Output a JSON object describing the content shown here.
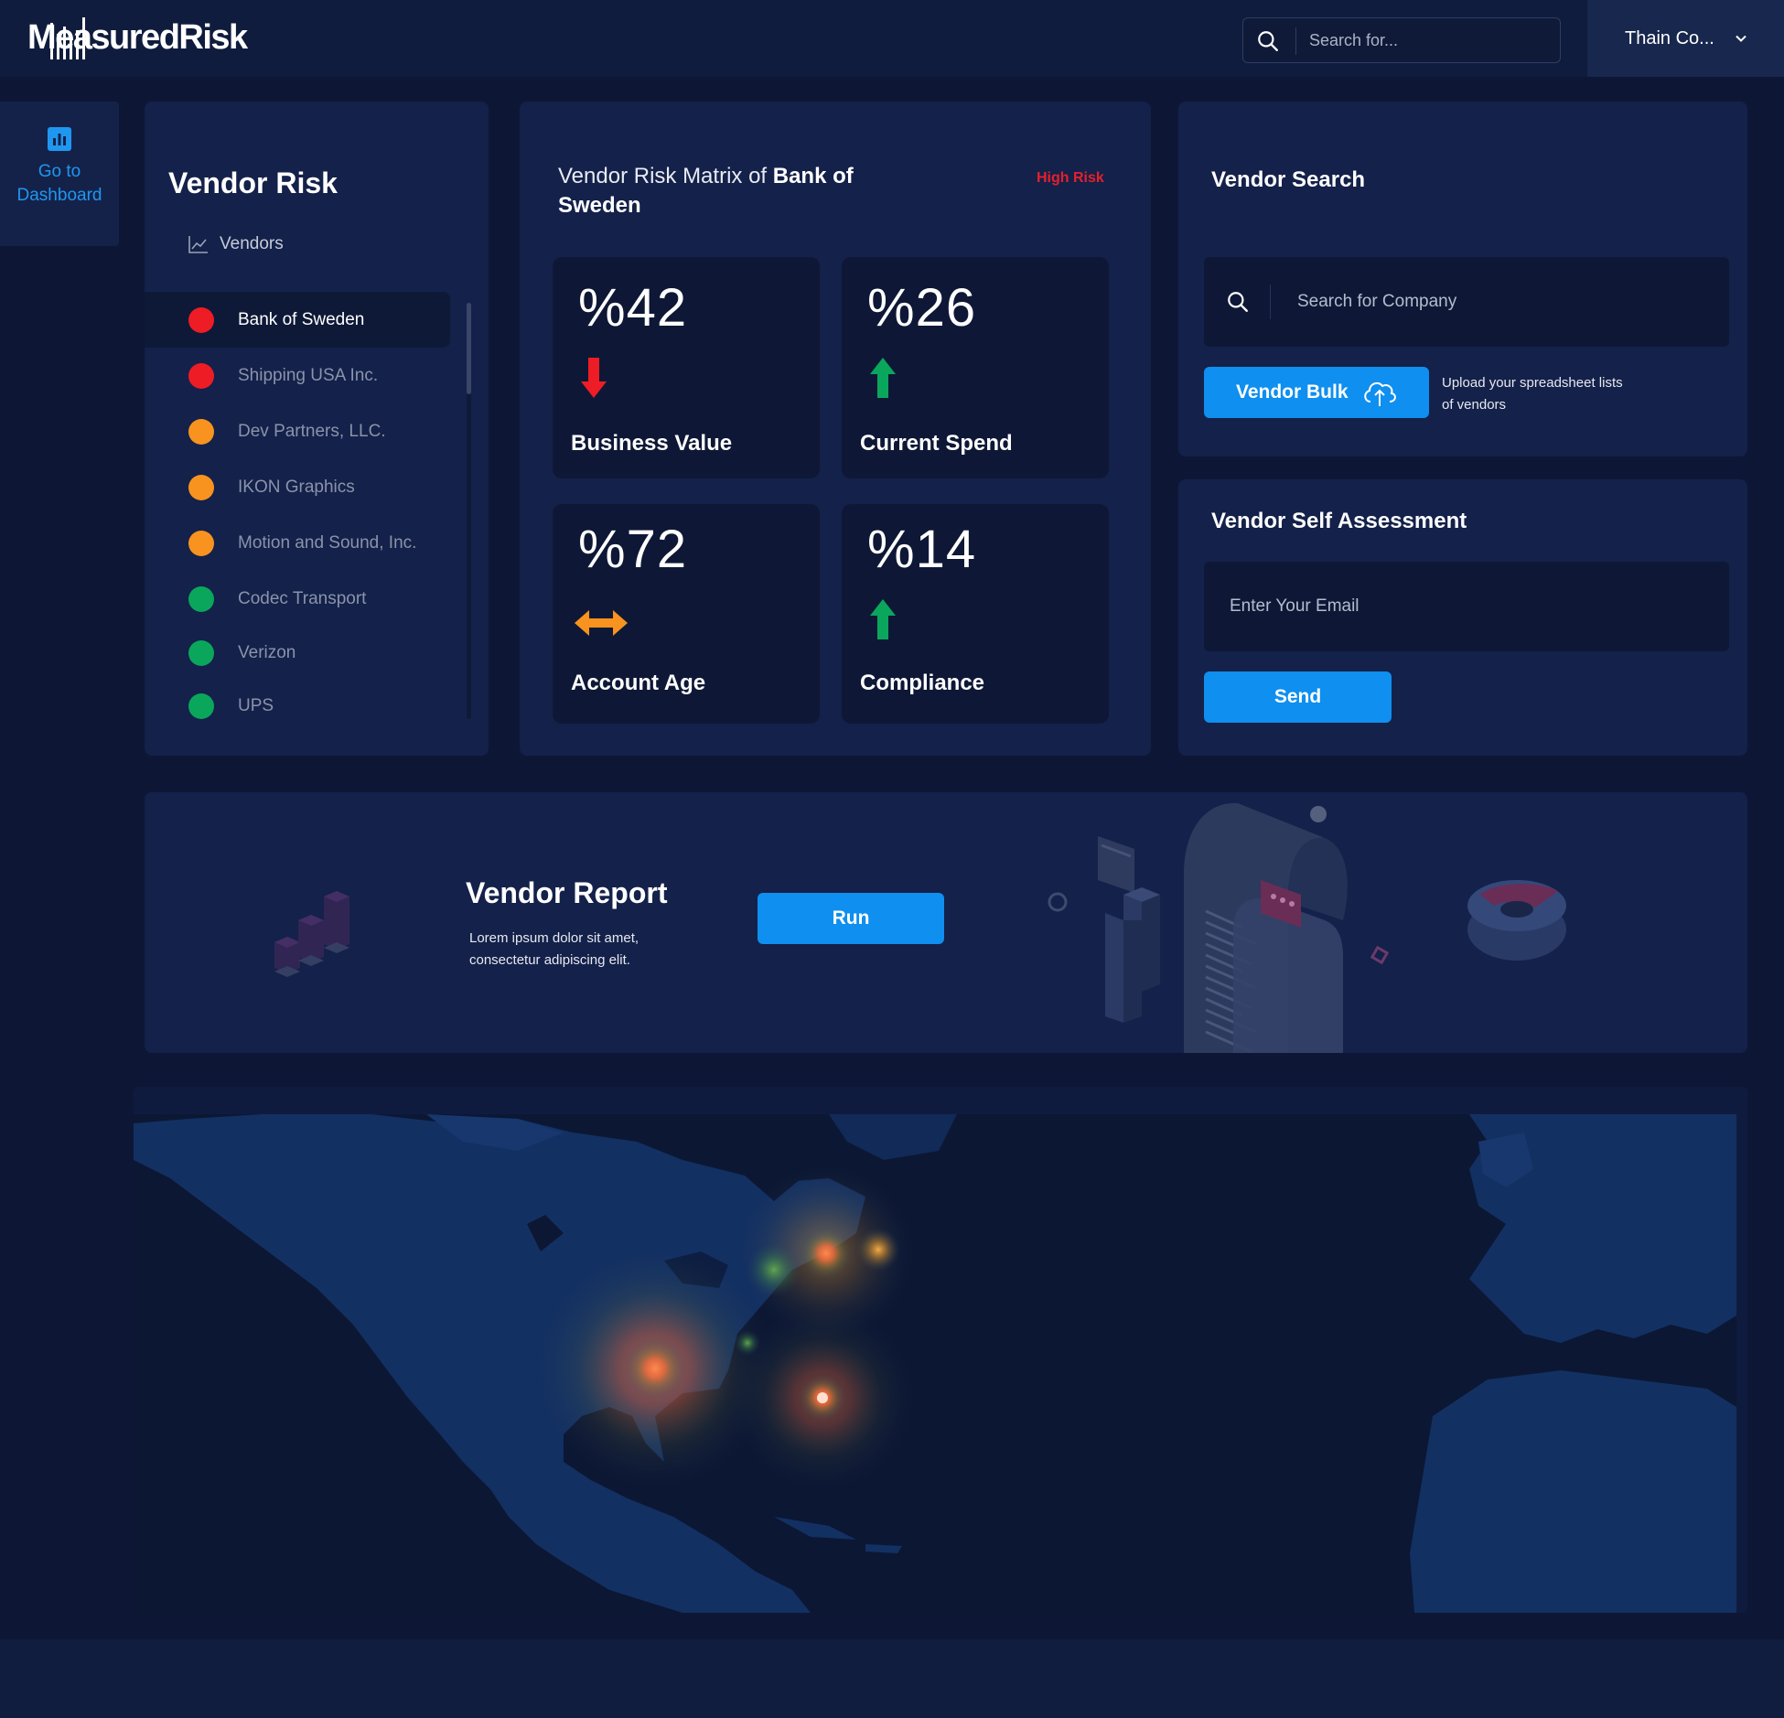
{
  "app": {
    "logo": "MeasuredRisk"
  },
  "header": {
    "search_placeholder": "Search for...",
    "user_name": "Thain Co..."
  },
  "sidebar": {
    "dashboard_label": "Go to Dashboard"
  },
  "vendor_risk": {
    "title": "Vendor Risk",
    "subtitle": "Vendors",
    "items": [
      {
        "name": "Bank of Sweden",
        "status_color": "#ee1c25",
        "active": true
      },
      {
        "name": "Shipping USA Inc.",
        "status_color": "#ee1c25",
        "active": false
      },
      {
        "name": "Dev Partners, LLC.",
        "status_color": "#f7931e",
        "active": false
      },
      {
        "name": "IKON Graphics",
        "status_color": "#f7931e",
        "active": false
      },
      {
        "name": "Motion and Sound, Inc.",
        "status_color": "#f7931e",
        "active": false
      },
      {
        "name": "Codec Transport",
        "status_color": "#0aa65c",
        "active": false
      },
      {
        "name": "Verizon",
        "status_color": "#0aa65c",
        "active": false
      },
      {
        "name": "UPS",
        "status_color": "#0aa65c",
        "active": false
      }
    ]
  },
  "matrix": {
    "title_prefix": "Vendor Risk Matrix of ",
    "title_bold": "Bank of Sweden",
    "risk_label": "High Risk",
    "metrics": [
      {
        "value": "%42",
        "label": "Business Value",
        "trend": "down",
        "color": "#ee1c25"
      },
      {
        "value": "%26",
        "label": "Current Spend",
        "trend": "up",
        "color": "#0aa65c"
      },
      {
        "value": "%72",
        "label": "Account Age",
        "trend": "neutral",
        "color": "#f7931e"
      },
      {
        "value": "%14",
        "label": "Compliance",
        "trend": "up",
        "color": "#0aa65c"
      }
    ]
  },
  "vendor_search": {
    "title": "Vendor Search",
    "placeholder": "Search for Company",
    "bulk_label": "Vendor Bulk",
    "bulk_note": "Upload your spreadsheet lists of vendors"
  },
  "self_assessment": {
    "title": "Vendor Self Assessment",
    "email_placeholder": "Enter Your Email",
    "send_label": "Send"
  },
  "report": {
    "title": "Vendor Report",
    "description": "Lorem ipsum dolor sit amet, consectetur adipiscing elit.",
    "run_label": "Run"
  },
  "colors": {
    "accent": "#0f8fef",
    "high_risk": "#e5202c",
    "background": "#0d1735",
    "card": "#14214a"
  }
}
